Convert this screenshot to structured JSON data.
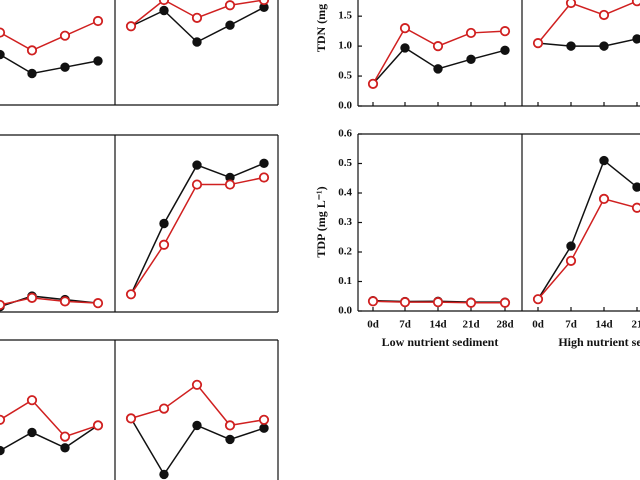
{
  "chart_data": [
    {
      "type": "line",
      "ylim": [
        0,
        1
      ],
      "groups": [
        {
          "categories": [
            null,
            null,
            null,
            null
          ],
          "series": [
            {
              "color": "#111111",
              "values": [
                0.48,
                0.3,
                0.36,
                0.42
              ]
            },
            {
              "color": "#d02020",
              "values": [
                0.69,
                0.52,
                0.66,
                0.8
              ]
            }
          ]
        },
        {
          "categories": [
            null,
            null,
            null,
            null,
            null
          ],
          "series": [
            {
              "color": "#111111",
              "values": [
                0.75,
                0.9,
                0.6,
                0.76,
                0.93
              ]
            },
            {
              "color": "#d02020",
              "values": [
                0.75,
                1.0,
                0.83,
                0.95,
                1.0
              ]
            }
          ]
        }
      ]
    },
    {
      "type": "line",
      "ylim": [
        0,
        1
      ],
      "groups": [
        {
          "categories": [
            null,
            null,
            null,
            null
          ],
          "series": [
            {
              "color": "#111111",
              "values": [
                0.03,
                0.09,
                0.07,
                0.05
              ]
            },
            {
              "color": "#d02020",
              "values": [
                0.04,
                0.08,
                0.06,
                0.05
              ]
            }
          ]
        },
        {
          "categories": [
            null,
            null,
            null,
            null,
            null
          ],
          "series": [
            {
              "color": "#111111",
              "values": [
                0.1,
                0.5,
                0.83,
                0.76,
                0.84
              ]
            },
            {
              "color": "#d02020",
              "values": [
                0.1,
                0.38,
                0.72,
                0.72,
                0.76
              ]
            }
          ]
        }
      ]
    },
    {
      "type": "line",
      "ylim": [
        0,
        1
      ],
      "groups": [
        {
          "categories": [
            null,
            null,
            null,
            null
          ],
          "series": [
            {
              "color": "#111111",
              "values": [
                0.21,
                0.34,
                0.23,
                0.39
              ]
            },
            {
              "color": "#d02020",
              "values": [
                0.43,
                0.57,
                0.31,
                0.39
              ]
            }
          ]
        },
        {
          "categories": [
            null,
            null,
            null,
            null,
            null
          ],
          "series": [
            {
              "color": "#111111",
              "values": [
                0.44,
                0.04,
                0.39,
                0.29,
                0.37
              ]
            },
            {
              "color": "#d02020",
              "values": [
                0.44,
                0.51,
                0.68,
                0.39,
                0.43
              ]
            }
          ]
        }
      ]
    },
    {
      "type": "line",
      "ylabel": "TDN (mg",
      "ylim": [
        0,
        1.77
      ],
      "yticks": [
        {
          "value": 0,
          "label": "0.0"
        },
        0.5,
        {
          "value": 1,
          "label": "1.0"
        },
        1.5
      ],
      "groups": [
        {
          "categories": [
            null,
            null,
            null,
            null,
            null
          ],
          "series": [
            {
              "color": "#111111",
              "values": [
                0.37,
                0.97,
                0.62,
                0.78,
                0.93
              ]
            },
            {
              "color": "#d02020",
              "values": [
                0.37,
                1.3,
                1.0,
                1.22,
                1.25
              ]
            }
          ]
        },
        {
          "categories": [
            null,
            null,
            null,
            null
          ],
          "series": [
            {
              "color": "#111111",
              "values": [
                1.05,
                1.0,
                1.0,
                1.12
              ]
            },
            {
              "color": "#d02020",
              "values": [
                1.05,
                1.72,
                1.52,
                1.75
              ]
            }
          ]
        }
      ]
    },
    {
      "type": "line",
      "ylabel": "TDP (mg L⁻¹)",
      "ylim": [
        0,
        0.6
      ],
      "yticks": [
        {
          "value": 0,
          "label": "0.0"
        },
        0.1,
        0.2,
        0.3,
        0.4,
        0.5,
        0.6
      ],
      "groups": [
        {
          "label": "Low nutrient sediment",
          "categories": [
            "0d",
            "7d",
            "14d",
            "21d",
            "28d"
          ],
          "series": [
            {
              "color": "#111111",
              "values": [
                0.035,
                0.032,
                0.033,
                0.03,
                0.03
              ]
            },
            {
              "color": "#d02020",
              "values": [
                0.033,
                0.03,
                0.03,
                0.028,
                0.028
              ]
            }
          ]
        },
        {
          "label": "High nutrient se",
          "categories": [
            "0d",
            "7d",
            "14d",
            "21"
          ],
          "series": [
            {
              "color": "#111111",
              "values": [
                0.04,
                0.22,
                0.51,
                0.42
              ]
            },
            {
              "color": "#d02020",
              "values": [
                0.04,
                0.17,
                0.38,
                0.35
              ]
            }
          ]
        }
      ]
    }
  ]
}
